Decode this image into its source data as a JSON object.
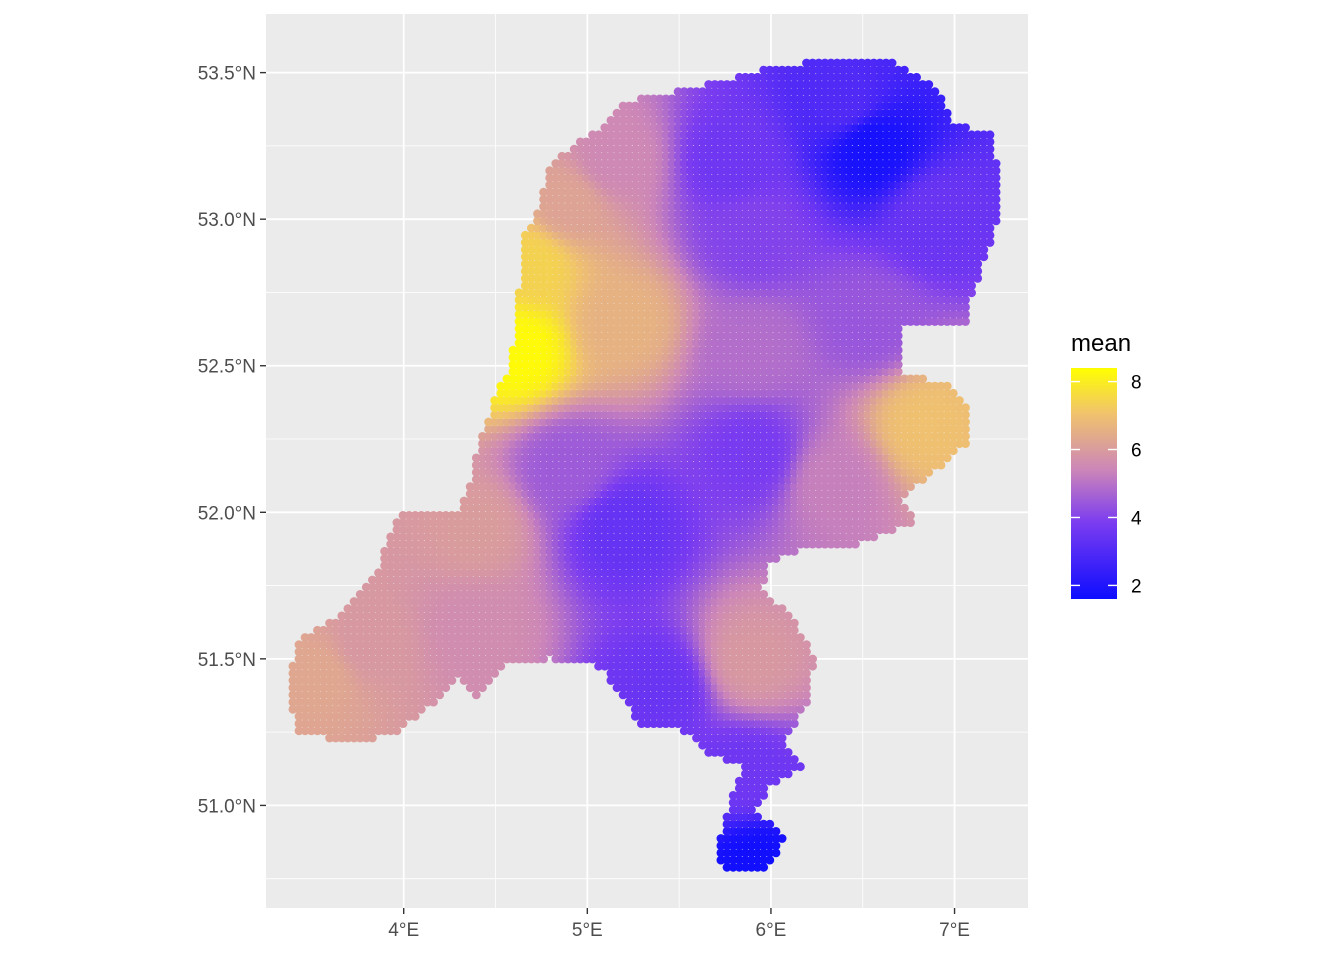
{
  "chart_data": {
    "type": "scatter",
    "subtype": "gridded point map",
    "title": "",
    "xlabel": "",
    "ylabel": "",
    "xlim": [
      3.25,
      7.4
    ],
    "ylim": [
      50.65,
      53.7
    ],
    "x_ticks": [
      {
        "value": 4,
        "label": "4°E"
      },
      {
        "value": 5,
        "label": "5°E"
      },
      {
        "value": 6,
        "label": "6°E"
      },
      {
        "value": 7,
        "label": "7°E"
      }
    ],
    "y_ticks": [
      {
        "value": 51.0,
        "label": "51.0°N"
      },
      {
        "value": 51.5,
        "label": "51.5°N"
      },
      {
        "value": 52.0,
        "label": "52.0°N"
      },
      {
        "value": 52.5,
        "label": "52.5°N"
      },
      {
        "value": 53.0,
        "label": "53.0°N"
      },
      {
        "value": 53.5,
        "label": "53.5°N"
      }
    ],
    "grid": true,
    "panel_background": "#ebebeb",
    "gridline_color": "#ffffff",
    "grid_step_deg": {
      "lon": 0.0333,
      "lat": 0.0245
    },
    "region_outline": [
      [
        3.37,
        51.38
      ],
      [
        3.42,
        51.56
      ],
      [
        3.62,
        51.64
      ],
      [
        3.72,
        51.69
      ],
      [
        3.86,
        51.8
      ],
      [
        3.93,
        51.93
      ],
      [
        3.97,
        51.99
      ],
      [
        4.3,
        52.01
      ],
      [
        4.37,
        52.12
      ],
      [
        4.4,
        52.2
      ],
      [
        4.5,
        52.41
      ],
      [
        4.58,
        52.48
      ],
      [
        4.62,
        52.72
      ],
      [
        4.66,
        52.96
      ],
      [
        4.71,
        53.0
      ],
      [
        4.8,
        53.2
      ],
      [
        5.05,
        53.3
      ],
      [
        5.2,
        53.4
      ],
      [
        5.6,
        53.45
      ],
      [
        6.0,
        53.52
      ],
      [
        6.4,
        53.55
      ],
      [
        6.62,
        53.55
      ],
      [
        6.9,
        53.45
      ],
      [
        7.0,
        53.32
      ],
      [
        7.2,
        53.3
      ],
      [
        7.23,
        53.2
      ],
      [
        7.23,
        52.98
      ],
      [
        7.1,
        52.75
      ],
      [
        7.07,
        52.65
      ],
      [
        6.72,
        52.64
      ],
      [
        6.7,
        52.48
      ],
      [
        6.95,
        52.44
      ],
      [
        7.06,
        52.38
      ],
      [
        7.07,
        52.24
      ],
      [
        6.86,
        52.12
      ],
      [
        6.7,
        52.05
      ],
      [
        6.8,
        51.97
      ],
      [
        6.39,
        51.87
      ],
      [
        6.17,
        51.88
      ],
      [
        5.98,
        51.82
      ],
      [
        5.95,
        51.73
      ],
      [
        6.1,
        51.66
      ],
      [
        6.23,
        51.51
      ],
      [
        6.22,
        51.36
      ],
      [
        6.07,
        51.22
      ],
      [
        6.18,
        51.14
      ],
      [
        5.99,
        51.06
      ],
      [
        5.9,
        50.98
      ],
      [
        6.08,
        50.9
      ],
      [
        5.97,
        50.77
      ],
      [
        5.76,
        50.77
      ],
      [
        5.7,
        50.85
      ],
      [
        5.78,
        51.02
      ],
      [
        5.85,
        51.13
      ],
      [
        5.66,
        51.18
      ],
      [
        5.5,
        51.27
      ],
      [
        5.3,
        51.26
      ],
      [
        5.08,
        51.47
      ],
      [
        4.8,
        51.5
      ],
      [
        4.55,
        51.48
      ],
      [
        4.4,
        51.37
      ],
      [
        4.3,
        51.43
      ],
      [
        4.2,
        51.37
      ],
      [
        3.99,
        51.26
      ],
      [
        3.82,
        51.22
      ],
      [
        3.58,
        51.23
      ],
      [
        3.42,
        51.25
      ]
    ],
    "color_scale": {
      "name": "mean",
      "min": 1.6,
      "max": 8.4,
      "breaks": [
        2,
        4,
        6,
        8
      ],
      "break_labels": [
        "2",
        "4",
        "6",
        "8"
      ],
      "colors": [
        "#0d0dff",
        "#7b3cf0",
        "#cc86b8",
        "#f0c26e",
        "#ffff00"
      ],
      "color_positions": [
        0.0,
        0.33,
        0.56,
        0.8,
        1.0
      ]
    },
    "value_field_anchors": [
      {
        "lon": 6.55,
        "lat": 53.25,
        "mean": 1.8
      },
      {
        "lon": 6.4,
        "lat": 53.4,
        "mean": 3.0
      },
      {
        "lon": 5.8,
        "lat": 53.2,
        "mean": 3.6
      },
      {
        "lon": 6.9,
        "lat": 53.0,
        "mean": 3.5
      },
      {
        "lon": 5.9,
        "lat": 52.95,
        "mean": 4.0
      },
      {
        "lon": 5.15,
        "lat": 53.2,
        "mean": 5.5
      },
      {
        "lon": 4.9,
        "lat": 53.05,
        "mean": 6.2
      },
      {
        "lon": 4.7,
        "lat": 52.85,
        "mean": 7.4
      },
      {
        "lon": 4.62,
        "lat": 52.55,
        "mean": 8.3
      },
      {
        "lon": 5.2,
        "lat": 52.65,
        "mean": 6.6
      },
      {
        "lon": 5.9,
        "lat": 52.55,
        "mean": 4.9
      },
      {
        "lon": 6.55,
        "lat": 52.65,
        "mean": 4.4
      },
      {
        "lon": 6.85,
        "lat": 52.3,
        "mean": 7.0
      },
      {
        "lon": 6.35,
        "lat": 52.1,
        "mean": 5.3
      },
      {
        "lon": 5.9,
        "lat": 52.2,
        "mean": 3.8
      },
      {
        "lon": 5.2,
        "lat": 51.95,
        "mean": 3.4
      },
      {
        "lon": 4.9,
        "lat": 52.15,
        "mean": 4.5
      },
      {
        "lon": 4.4,
        "lat": 51.95,
        "mean": 6.0
      },
      {
        "lon": 3.8,
        "lat": 51.55,
        "mean": 5.9
      },
      {
        "lon": 3.55,
        "lat": 51.45,
        "mean": 6.3
      },
      {
        "lon": 4.4,
        "lat": 51.6,
        "mean": 5.6
      },
      {
        "lon": 5.4,
        "lat": 51.4,
        "mean": 3.5
      },
      {
        "lon": 5.9,
        "lat": 51.5,
        "mean": 5.9
      },
      {
        "lon": 5.85,
        "lat": 51.1,
        "mean": 3.6
      },
      {
        "lon": 5.92,
        "lat": 50.8,
        "mean": 1.7
      }
    ]
  }
}
